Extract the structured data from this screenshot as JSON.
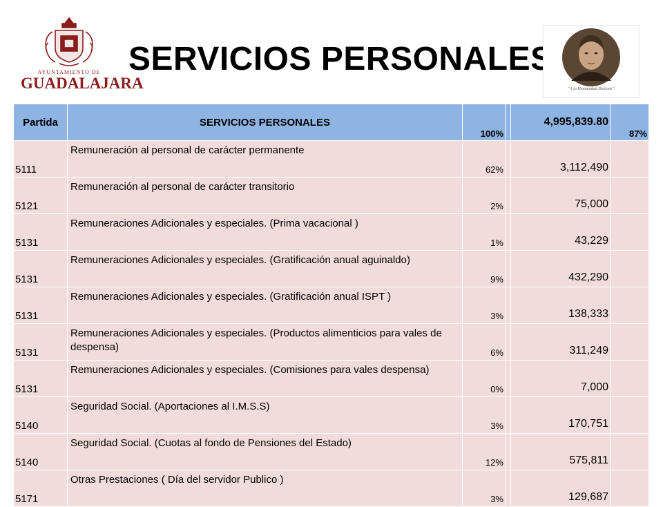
{
  "header": {
    "title": "SERVICIOS PERSONALES",
    "logo_small_text": "AYUNTAMIENTO DE",
    "logo_big_text": "GUADALAJARA",
    "portrait_caption": "\"A la Humanidad Doliente\""
  },
  "table": {
    "head": {
      "code": "Partida",
      "desc": "SERVICIOS PERSONALES",
      "pct": "100%",
      "amount": "4,995,839.80",
      "pct2": "87%"
    },
    "rows": [
      {
        "code": "5111",
        "desc": "Remuneración al personal de carácter permanente",
        "pct": "62%",
        "amount": "3,112,490"
      },
      {
        "code": "5121",
        "desc": "Remuneración al personal de carácter transitorio",
        "pct": "2%",
        "amount": "75,000"
      },
      {
        "code": "5131",
        "desc": "Remuneraciones Adicionales y especiales. (Prima vacacional )",
        "pct": "1%",
        "amount": "43,229"
      },
      {
        "code": "5131",
        "desc": "Remuneraciones Adicionales y especiales. (Gratificación anual aguinaldo)",
        "pct": "9%",
        "amount": "432,290"
      },
      {
        "code": "5131",
        "desc": "Remuneraciones Adicionales y especiales. (Gratificación anual ISPT )",
        "pct": "3%",
        "amount": "138,333"
      },
      {
        "code": "5131",
        "desc": "Remuneraciones Adicionales y especiales. (Productos alimenticios para vales de despensa)",
        "pct": "6%",
        "amount": "311,249"
      },
      {
        "code": "5131",
        "desc": "Remuneraciones Adicionales y especiales. (Comisiones para vales despensa)",
        "pct": "0%",
        "amount": "7,000"
      },
      {
        "code": "5140",
        "desc": "Seguridad Social. (Aportaciones al I.M.S.S)",
        "pct": "3%",
        "amount": "170,751"
      },
      {
        "code": "5140",
        "desc": "Seguridad Social. (Cuotas al fondo de Pensiones del Estado)",
        "pct": "12%",
        "amount": "575,811"
      },
      {
        "code": "5171",
        "desc": "Otras Prestaciones ( Día del servidor Publico )",
        "pct": "3%",
        "amount": "129,687"
      }
    ]
  }
}
